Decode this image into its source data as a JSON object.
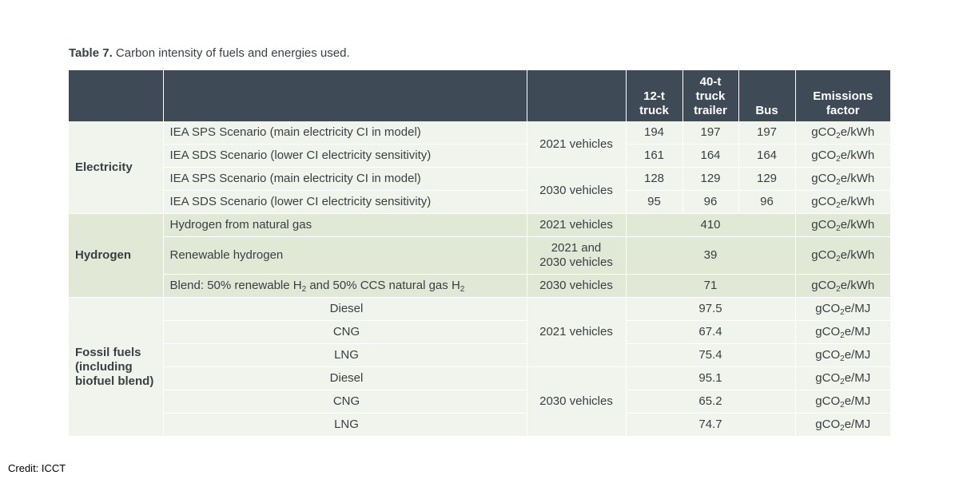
{
  "caption": {
    "label": "Table 7.",
    "text": "Carbon intensity of fuels and energies used."
  },
  "headers": {
    "h1": "",
    "h2": "",
    "h3": "",
    "truck12": "12-t truck",
    "truck40": "40-t truck trailer",
    "bus": "Bus",
    "factor": "Emissions factor"
  },
  "groups": {
    "electricity": "Electricity",
    "hydrogen": "Hydrogen",
    "fossil": "Fossil fuels (including biofuel blend)"
  },
  "rows": {
    "e1": {
      "desc": "IEA SPS Scenario (main electricity CI in model)",
      "truck12": "194",
      "truck40": "197",
      "bus": "197",
      "unit_pre": "gCO",
      "unit_sub": "2",
      "unit_post": "e/kWh"
    },
    "e2": {
      "desc": "IEA SDS Scenario (lower CI electricity sensitivity)",
      "truck12": "161",
      "truck40": "164",
      "bus": "164",
      "unit_pre": "gCO",
      "unit_sub": "2",
      "unit_post": "e/kWh"
    },
    "e3": {
      "desc": "IEA SPS Scenario (main electricity CI in model)",
      "truck12": "128",
      "truck40": "129",
      "bus": "129",
      "unit_pre": "gCO",
      "unit_sub": "2",
      "unit_post": "e/kWh"
    },
    "e4": {
      "desc": "IEA SDS Scenario (lower CI electricity sensitivity)",
      "truck12": "95",
      "truck40": "96",
      "bus": "96",
      "unit_pre": "gCO",
      "unit_sub": "2",
      "unit_post": "e/kWh"
    },
    "h1": {
      "desc": "Hydrogen from natural gas",
      "vehicles": "2021 vehicles",
      "value": "410",
      "unit_pre": "gCO",
      "unit_sub": "2",
      "unit_post": "e/kWh"
    },
    "h2": {
      "desc": "Renewable hydrogen",
      "vehicles": "2021 and 2030 vehicles",
      "value": "39",
      "unit_pre": "gCO",
      "unit_sub": "2",
      "unit_post": "e/kWh"
    },
    "h3": {
      "desc_a": "Blend: 50% renewable H",
      "desc_sub1": "2",
      "desc_b": " and 50% CCS natural gas H",
      "desc_sub2": "2",
      "vehicles": "2030 vehicles",
      "value": "71",
      "unit_pre": "gCO",
      "unit_sub": "2",
      "unit_post": "e/kWh"
    },
    "f1": {
      "desc": "Diesel",
      "value": "97.5",
      "unit_pre": "gCO",
      "unit_sub": "2",
      "unit_post": "e/MJ"
    },
    "f2": {
      "desc": "CNG",
      "value": "67.4",
      "unit_pre": "gCO",
      "unit_sub": "2",
      "unit_post": "e/MJ"
    },
    "f3": {
      "desc": "LNG",
      "value": "75.4",
      "unit_pre": "gCO",
      "unit_sub": "2",
      "unit_post": "e/MJ"
    },
    "f4": {
      "desc": "Diesel",
      "value": "95.1",
      "unit_pre": "gCO",
      "unit_sub": "2",
      "unit_post": "e/MJ"
    },
    "f5": {
      "desc": "CNG",
      "value": "65.2",
      "unit_pre": "gCO",
      "unit_sub": "2",
      "unit_post": "e/MJ"
    },
    "f6": {
      "desc": "LNG",
      "value": "74.7",
      "unit_pre": "gCO",
      "unit_sub": "2",
      "unit_post": "e/MJ"
    }
  },
  "vehicles": {
    "elec2021": "2021 vehicles",
    "elec2030": "2030 vehicles",
    "foss2021": "2021 vehicles",
    "foss2030": "2030 vehicles"
  },
  "credit": "Credit: ICCT",
  "colors": {
    "header": "#3e4a56",
    "light_row": "#f1f4ec",
    "hydrogen_row": "#e2e8d6",
    "text": "#3a3f44"
  }
}
